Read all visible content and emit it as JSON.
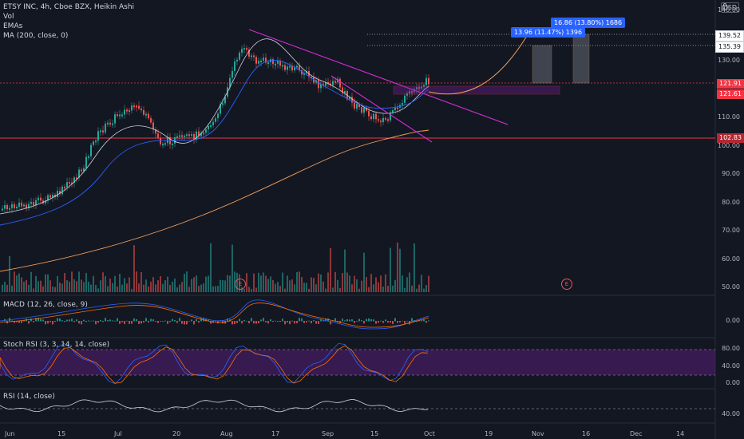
{
  "header": {
    "symbol_line": "ETSY INC, 4h, Cboe BZX, Heikin Ashi",
    "indicators": [
      "Vol",
      "EMAs",
      "MA (200, close, 0)"
    ],
    "currency": "USD"
  },
  "price_axis": {
    "ticks": [
      "140.00",
      "130.00",
      "110.00",
      "100.00",
      "90.00",
      "80.00",
      "70.00",
      "60.00",
      "50.00"
    ],
    "tags": [
      {
        "label": "139.52",
        "kind": "plain"
      },
      {
        "label": "135.39",
        "kind": "plain"
      },
      {
        "label": "121.91",
        "kind": "red"
      },
      {
        "label": "121.61",
        "kind": "red"
      },
      {
        "label": "102.83",
        "kind": "darkred"
      }
    ]
  },
  "measures": [
    {
      "label": "13.96 (11.47%) 1396"
    },
    {
      "label": "16.86 (13.80%) 1686"
    }
  ],
  "earnings_markers": [
    "E",
    "E"
  ],
  "panes": {
    "macd": {
      "label": "MACD (12, 26, close, 9)",
      "ticks": [
        "0.00"
      ]
    },
    "stoch": {
      "label": "Stoch RSI (3, 3, 14, 14, close)",
      "ticks": [
        "80.00",
        "40.00",
        "0.00"
      ]
    },
    "rsi": {
      "label": "RSI (14, close)",
      "ticks": [
        "40.00"
      ]
    }
  },
  "time_axis": [
    "Jun",
    "15",
    "Jul",
    "20",
    "Aug",
    "17",
    "Sep",
    "15",
    "Oct",
    "19",
    "Nov",
    "16",
    "Dec",
    "14"
  ],
  "colors": {
    "up": "#26a69a",
    "down": "#ef5350",
    "bg": "#131722",
    "trendline": "#d22ed2",
    "ma200": "#f5a05a",
    "ema_fast": "#d1d4dc",
    "ema_slow": "#2962ff",
    "level_line": "#f23645",
    "stoch_band": "#7b1fa2"
  }
}
